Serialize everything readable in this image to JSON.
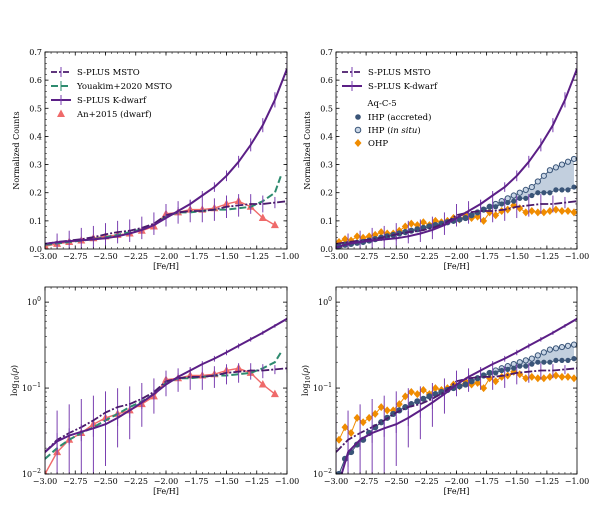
{
  "colors": {
    "msto": "#4a1a6b",
    "youakim": "#2e8b6f",
    "kdwarf": "#5b1f86",
    "an": "#ef6a6a",
    "ihp": "#3a5578",
    "ihp_open_fill": "#c9d6e6",
    "ohp": "#f08c00",
    "band": "#b7c7d8"
  },
  "chart_data": [
    {
      "type": "line",
      "panel": "top-left",
      "xlabel": "[Fe/H]",
      "ylabel": "Normalized Counts",
      "xlim": [
        -3.0,
        -1.0
      ],
      "ylim": [
        0,
        0.7
      ],
      "log": false,
      "xticks": [
        "−3.00",
        "−2.75",
        "−2.50",
        "−2.25",
        "−2.00",
        "−1.75",
        "−1.50",
        "−1.25",
        "−1.00"
      ],
      "yticks": [
        [
          "0.0",
          0
        ],
        [
          "0.1",
          0.1
        ],
        [
          "0.2",
          0.2
        ],
        [
          "0.3",
          0.3
        ],
        [
          "0.4",
          0.4
        ],
        [
          "0.5",
          0.5
        ],
        [
          "0.6",
          0.6
        ],
        [
          "0.7",
          0.7
        ]
      ],
      "legend": {
        "position": "top-left",
        "entries": [
          {
            "key": "msto",
            "label": "S-PLUS MSTO"
          },
          {
            "key": "youakim",
            "label": "Youakim+2020 MSTO"
          },
          {
            "key": "kdwarf",
            "label": "S-PLUS K-dwarf"
          },
          {
            "key": "an",
            "label": "An+2015 (dwarf)"
          }
        ]
      },
      "series": [
        {
          "key": "kdwarf",
          "x": [
            -3.0,
            -2.9,
            -2.8,
            -2.7,
            -2.6,
            -2.5,
            -2.4,
            -2.3,
            -2.2,
            -2.1,
            -2.0,
            -1.9,
            -1.8,
            -1.7,
            -1.6,
            -1.5,
            -1.4,
            -1.3,
            -1.2,
            -1.1,
            -1.0
          ],
          "y": [
            0.018,
            0.024,
            0.028,
            0.031,
            0.034,
            0.038,
            0.045,
            0.055,
            0.068,
            0.085,
            0.11,
            0.135,
            0.16,
            0.19,
            0.22,
            0.26,
            0.31,
            0.37,
            0.44,
            0.53,
            0.64
          ],
          "err": [
            0.006,
            0.006,
            0.006,
            0.007,
            0.007,
            0.008,
            0.009,
            0.01,
            0.011,
            0.012,
            0.013,
            0.014,
            0.015,
            0.016,
            0.017,
            0.019,
            0.021,
            0.023,
            0.025,
            0.027,
            0.03
          ]
        },
        {
          "key": "msto",
          "x": [
            -3.0,
            -2.9,
            -2.8,
            -2.7,
            -2.6,
            -2.5,
            -2.4,
            -2.3,
            -2.2,
            -2.1,
            -2.0,
            -1.9,
            -1.8,
            -1.7,
            -1.6,
            -1.5,
            -1.4,
            -1.3,
            -1.2,
            -1.1,
            -1.0
          ],
          "y": [
            0.018,
            0.025,
            0.03,
            0.035,
            0.042,
            0.052,
            0.06,
            0.065,
            0.075,
            0.09,
            0.12,
            0.13,
            0.135,
            0.135,
            0.14,
            0.15,
            0.155,
            0.16,
            0.16,
            0.165,
            0.17
          ],
          "err": [
            0.03,
            0.03,
            0.035,
            0.04,
            0.04,
            0.04,
            0.04,
            0.04,
            0.04,
            0.04,
            0.04,
            0.04,
            0.04,
            0.04,
            0.04,
            0.04,
            0.04,
            0.035,
            0.03,
            0.02,
            0.02
          ]
        },
        {
          "key": "youakim",
          "x": [
            -3.0,
            -2.9,
            -2.8,
            -2.7,
            -2.6,
            -2.5,
            -2.4,
            -2.3,
            -2.2,
            -2.1,
            -2.0,
            -1.9,
            -1.8,
            -1.7,
            -1.6,
            -1.5,
            -1.4,
            -1.3,
            -1.2,
            -1.1,
            -1.05
          ],
          "y": [
            0.015,
            0.02,
            0.025,
            0.03,
            0.035,
            0.042,
            0.05,
            0.06,
            0.07,
            0.085,
            0.115,
            0.13,
            0.13,
            0.135,
            0.14,
            0.14,
            0.145,
            0.15,
            0.17,
            0.2,
            0.26
          ]
        },
        {
          "key": "an",
          "x": [
            -3.0,
            -2.9,
            -2.8,
            -2.7,
            -2.6,
            -2.5,
            -2.4,
            -2.3,
            -2.2,
            -2.1,
            -2.0,
            -1.9,
            -1.8,
            -1.7,
            -1.6,
            -1.5,
            -1.4,
            -1.3,
            -1.2,
            -1.1
          ],
          "y": [
            0.01,
            0.018,
            0.025,
            0.03,
            0.038,
            0.045,
            0.05,
            0.055,
            0.065,
            0.08,
            0.125,
            0.13,
            0.14,
            0.14,
            0.145,
            0.16,
            0.17,
            0.15,
            0.11,
            0.085
          ]
        }
      ]
    },
    {
      "type": "line",
      "panel": "top-right",
      "xlabel": "[Fe/H]",
      "ylabel": "Normalized Counts",
      "xlim": [
        -3.0,
        -1.0
      ],
      "ylim": [
        0,
        0.7
      ],
      "log": false,
      "xticks": [
        "−3.00",
        "−2.75",
        "−2.50",
        "−2.25",
        "−2.00",
        "−1.75",
        "−1.50",
        "−1.25",
        "−1.00"
      ],
      "yticks": [
        [
          "0.0",
          0
        ],
        [
          "0.1",
          0.1
        ],
        [
          "0.2",
          0.2
        ],
        [
          "0.3",
          0.3
        ],
        [
          "0.4",
          0.4
        ],
        [
          "0.5",
          0.5
        ],
        [
          "0.6",
          0.6
        ],
        [
          "0.7",
          0.7
        ]
      ],
      "legend": {
        "position": "top-left",
        "entries": [
          {
            "key": "msto",
            "label": "S-PLUS MSTO"
          },
          {
            "key": "kdwarf",
            "label": "S-PLUS K-dwarf"
          }
        ],
        "title": "Aq-C-5",
        "entries2": [
          {
            "key": "ihp",
            "label": "IHP (accreted)"
          },
          {
            "key": "ihp_open",
            "label_pre": "IHP (",
            "label_it": "in situ",
            "label_post": ")"
          },
          {
            "key": "ohp",
            "label": "OHP"
          }
        ]
      },
      "series": [
        {
          "key": "kdwarf",
          "x": [
            -3.0,
            -2.9,
            -2.8,
            -2.7,
            -2.6,
            -2.5,
            -2.4,
            -2.3,
            -2.2,
            -2.1,
            -2.0,
            -1.9,
            -1.8,
            -1.7,
            -1.6,
            -1.5,
            -1.4,
            -1.3,
            -1.2,
            -1.1,
            -1.0
          ],
          "y": [
            0.005,
            0.018,
            0.025,
            0.03,
            0.034,
            0.038,
            0.045,
            0.055,
            0.068,
            0.085,
            0.11,
            0.135,
            0.16,
            0.19,
            0.22,
            0.26,
            0.31,
            0.37,
            0.44,
            0.53,
            0.64
          ],
          "err": [
            0.006,
            0.006,
            0.006,
            0.007,
            0.007,
            0.008,
            0.009,
            0.01,
            0.011,
            0.012,
            0.013,
            0.014,
            0.015,
            0.016,
            0.017,
            0.019,
            0.021,
            0.023,
            0.025,
            0.027,
            0.03
          ]
        },
        {
          "key": "msto",
          "x": [
            -3.0,
            -2.9,
            -2.8,
            -2.7,
            -2.6,
            -2.5,
            -2.4,
            -2.3,
            -2.2,
            -2.1,
            -2.0,
            -1.9,
            -1.8,
            -1.7,
            -1.6,
            -1.5,
            -1.4,
            -1.3,
            -1.2,
            -1.1,
            -1.0
          ],
          "y": [
            0.018,
            0.025,
            0.03,
            0.035,
            0.042,
            0.052,
            0.06,
            0.065,
            0.075,
            0.09,
            0.12,
            0.13,
            0.135,
            0.135,
            0.14,
            0.15,
            0.155,
            0.16,
            0.16,
            0.165,
            0.17
          ],
          "err": [
            0.03,
            0.03,
            0.035,
            0.04,
            0.04,
            0.04,
            0.04,
            0.04,
            0.04,
            0.04,
            0.04,
            0.04,
            0.04,
            0.04,
            0.04,
            0.04,
            0.04,
            0.035,
            0.03,
            0.02,
            0.02
          ]
        },
        {
          "key": "ohp",
          "x": [
            -2.975,
            -2.925,
            -2.875,
            -2.825,
            -2.775,
            -2.725,
            -2.675,
            -2.625,
            -2.575,
            -2.525,
            -2.475,
            -2.425,
            -2.375,
            -2.325,
            -2.275,
            -2.225,
            -2.175,
            -2.125,
            -2.075,
            -2.025,
            -1.975,
            -1.925,
            -1.875,
            -1.825,
            -1.775,
            -1.725,
            -1.675,
            -1.625,
            -1.575,
            -1.525,
            -1.475,
            -1.425,
            -1.375,
            -1.325,
            -1.275,
            -1.225,
            -1.175,
            -1.125,
            -1.075,
            -1.025
          ],
          "y": [
            0.025,
            0.035,
            0.03,
            0.045,
            0.04,
            0.045,
            0.05,
            0.06,
            0.055,
            0.055,
            0.065,
            0.08,
            0.09,
            0.085,
            0.095,
            0.085,
            0.1,
            0.095,
            0.1,
            0.11,
            0.105,
            0.12,
            0.11,
            0.115,
            0.1,
            0.13,
            0.12,
            0.135,
            0.14,
            0.155,
            0.145,
            0.13,
            0.135,
            0.13,
            0.13,
            0.135,
            0.14,
            0.135,
            0.135,
            0.13
          ]
        },
        {
          "key": "ihp",
          "x": [
            -2.975,
            -2.925,
            -2.875,
            -2.825,
            -2.775,
            -2.725,
            -2.675,
            -2.625,
            -2.575,
            -2.525,
            -2.475,
            -2.425,
            -2.375,
            -2.325,
            -2.275,
            -2.225,
            -2.175,
            -2.125,
            -2.075,
            -2.025,
            -1.975,
            -1.925,
            -1.875,
            -1.825,
            -1.775,
            -1.725,
            -1.675,
            -1.625,
            -1.575,
            -1.525,
            -1.475,
            -1.425,
            -1.375,
            -1.325,
            -1.275,
            -1.225,
            -1.175,
            -1.125,
            -1.075,
            -1.025
          ],
          "y": [
            0.01,
            0.015,
            0.018,
            0.022,
            0.025,
            0.03,
            0.035,
            0.04,
            0.045,
            0.05,
            0.055,
            0.06,
            0.065,
            0.07,
            0.075,
            0.08,
            0.085,
            0.09,
            0.095,
            0.1,
            0.105,
            0.11,
            0.12,
            0.13,
            0.14,
            0.15,
            0.15,
            0.16,
            0.165,
            0.17,
            0.18,
            0.18,
            0.19,
            0.2,
            0.2,
            0.2,
            0.21,
            0.21,
            0.21,
            0.22
          ]
        },
        {
          "key": "ihp_open",
          "x": [
            -2.975,
            -2.925,
            -2.875,
            -2.825,
            -2.775,
            -2.725,
            -2.675,
            -2.625,
            -2.575,
            -2.525,
            -2.475,
            -2.425,
            -2.375,
            -2.325,
            -2.275,
            -2.225,
            -2.175,
            -2.125,
            -2.075,
            -2.025,
            -1.975,
            -1.925,
            -1.875,
            -1.825,
            -1.775,
            -1.725,
            -1.675,
            -1.625,
            -1.575,
            -1.525,
            -1.475,
            -1.425,
            -1.375,
            -1.325,
            -1.275,
            -1.225,
            -1.175,
            -1.125,
            -1.075,
            -1.025
          ],
          "y": [
            0.01,
            0.015,
            0.018,
            0.022,
            0.025,
            0.03,
            0.035,
            0.04,
            0.045,
            0.05,
            0.055,
            0.06,
            0.065,
            0.07,
            0.075,
            0.08,
            0.085,
            0.09,
            0.095,
            0.1,
            0.105,
            0.11,
            0.12,
            0.13,
            0.14,
            0.15,
            0.16,
            0.17,
            0.18,
            0.19,
            0.2,
            0.21,
            0.22,
            0.24,
            0.26,
            0.28,
            0.29,
            0.3,
            0.31,
            0.32
          ]
        }
      ]
    },
    {
      "type": "line",
      "panel": "bottom-left",
      "xlabel": "[Fe/H]",
      "ylabel": "log10(ρ)",
      "xlim": [
        -3.0,
        -1.0
      ],
      "ylim": [
        0.01,
        1.5
      ],
      "log": true,
      "xticks": [
        "−3.00",
        "−2.75",
        "−2.50",
        "−2.25",
        "−2.00",
        "−1.75",
        "−1.50",
        "−1.25",
        "−1.00"
      ],
      "series_ref": 0
    },
    {
      "type": "line",
      "panel": "bottom-right",
      "xlabel": "[Fe/H]",
      "ylabel": "log10(ρ)",
      "xlim": [
        -3.0,
        -1.0
      ],
      "ylim": [
        0.01,
        1.5
      ],
      "log": true,
      "xticks": [
        "−3.00",
        "−2.75",
        "−2.50",
        "−2.25",
        "−2.00",
        "−1.75",
        "−1.50",
        "−1.25",
        "−1.00"
      ],
      "series_ref": 1
    }
  ]
}
